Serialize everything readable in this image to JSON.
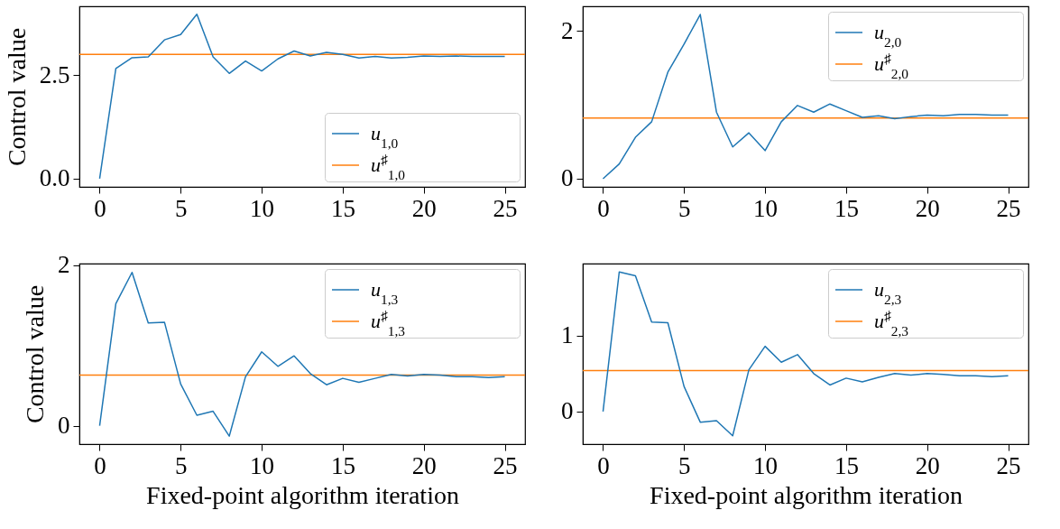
{
  "chart_data": [
    {
      "type": "line",
      "ylabel": "Control value",
      "x": [
        0,
        1,
        2,
        3,
        4,
        5,
        6,
        7,
        8,
        9,
        10,
        11,
        12,
        13,
        14,
        15,
        16,
        17,
        18,
        19,
        20,
        21,
        22,
        23,
        24,
        25
      ],
      "xlim": [
        -1.25,
        26.25
      ],
      "xticks": [
        0,
        5,
        10,
        15,
        20,
        25
      ],
      "ylim": [
        -0.2,
        4.16
      ],
      "yticks": [
        {
          "value": 0,
          "label": "0.0"
        },
        {
          "value": 2.5,
          "label": "2.5"
        }
      ],
      "legend": "bottom right",
      "series": [
        {
          "name": "u$_{1,0}$",
          "color": "#1f77b4",
          "values": [
            0,
            2.66,
            2.92,
            2.94,
            3.35,
            3.48,
            3.97,
            2.94,
            2.54,
            2.84,
            2.6,
            2.89,
            3.08,
            2.96,
            3.05,
            3.0,
            2.91,
            2.95,
            2.91,
            2.93,
            2.96,
            2.95,
            2.96,
            2.95,
            2.95,
            2.95
          ]
        }
      ],
      "ref_lines": [
        {
          "axis": "y",
          "value": 3.0,
          "label": "u$^{♯}$$_{1,0}$",
          "color": "#ff7f0e"
        }
      ]
    },
    {
      "type": "line",
      "x": [
        0,
        1,
        2,
        3,
        4,
        5,
        6,
        7,
        8,
        9,
        10,
        11,
        12,
        13,
        14,
        15,
        16,
        17,
        18,
        19,
        20,
        21,
        22,
        23,
        24,
        25
      ],
      "xlim": [
        -1.25,
        26.25
      ],
      "xticks": [
        0,
        5,
        10,
        15,
        20,
        25
      ],
      "ylim": [
        -0.11,
        2.33
      ],
      "yticks": [
        0,
        2
      ],
      "legend": "top right",
      "series": [
        {
          "name": "u$_{2,0}$",
          "color": "#1f77b4",
          "values": [
            0,
            0.2,
            0.56,
            0.77,
            1.44,
            1.82,
            2.22,
            0.9,
            0.43,
            0.62,
            0.38,
            0.77,
            0.99,
            0.9,
            1.01,
            0.92,
            0.83,
            0.85,
            0.81,
            0.84,
            0.86,
            0.85,
            0.87,
            0.87,
            0.86,
            0.86
          ]
        }
      ],
      "ref_lines": [
        {
          "axis": "y",
          "value": 0.82,
          "label": "u$^{♯}$$_{2,0}$",
          "color": "#ff7f0e"
        }
      ]
    },
    {
      "type": "line",
      "ylabel": "Control value",
      "xlabel": "Fixed-point algorithm iteration",
      "x": [
        0,
        1,
        2,
        3,
        4,
        5,
        6,
        7,
        8,
        9,
        10,
        11,
        12,
        13,
        14,
        15,
        16,
        17,
        18,
        19,
        20,
        21,
        22,
        23,
        24,
        25
      ],
      "xlim": [
        -1.25,
        26.25
      ],
      "xticks": [
        0,
        5,
        10,
        15,
        20,
        25
      ],
      "ylim": [
        -0.23,
        2.02
      ],
      "yticks": [
        0,
        2
      ],
      "legend": "top right",
      "series": [
        {
          "name": "u$_{1,3}$",
          "color": "#1f77b4",
          "values": [
            0,
            1.52,
            1.91,
            1.28,
            1.29,
            0.52,
            0.13,
            0.18,
            -0.13,
            0.61,
            0.92,
            0.74,
            0.87,
            0.65,
            0.51,
            0.59,
            0.54,
            0.59,
            0.64,
            0.62,
            0.64,
            0.63,
            0.61,
            0.61,
            0.6,
            0.61
          ]
        }
      ],
      "ref_lines": [
        {
          "axis": "y",
          "value": 0.63,
          "label": "u$^{♯}$$_{1,3}$",
          "color": "#ff7f0e"
        }
      ]
    },
    {
      "type": "line",
      "xlabel": "Fixed-point algorithm iteration",
      "x": [
        0,
        1,
        2,
        3,
        4,
        5,
        6,
        7,
        8,
        9,
        10,
        11,
        12,
        13,
        14,
        15,
        16,
        17,
        18,
        19,
        20,
        21,
        22,
        23,
        24,
        25
      ],
      "xlim": [
        -1.25,
        26.25
      ],
      "xticks": [
        0,
        5,
        10,
        15,
        20,
        25
      ],
      "ylim": [
        -0.43,
        1.95
      ],
      "yticks": [
        0,
        1
      ],
      "legend": "top right",
      "series": [
        {
          "name": "u$_{2,3}$",
          "color": "#1f77b4",
          "values": [
            0,
            1.84,
            1.79,
            1.18,
            1.17,
            0.33,
            -0.14,
            -0.12,
            -0.32,
            0.55,
            0.86,
            0.65,
            0.75,
            0.5,
            0.35,
            0.44,
            0.39,
            0.45,
            0.5,
            0.48,
            0.5,
            0.49,
            0.47,
            0.47,
            0.46,
            0.47
          ]
        }
      ],
      "ref_lines": [
        {
          "axis": "y",
          "value": 0.54,
          "label": "u$^{♯}$$_{2,3}$",
          "color": "#ff7f0e"
        }
      ]
    }
  ]
}
